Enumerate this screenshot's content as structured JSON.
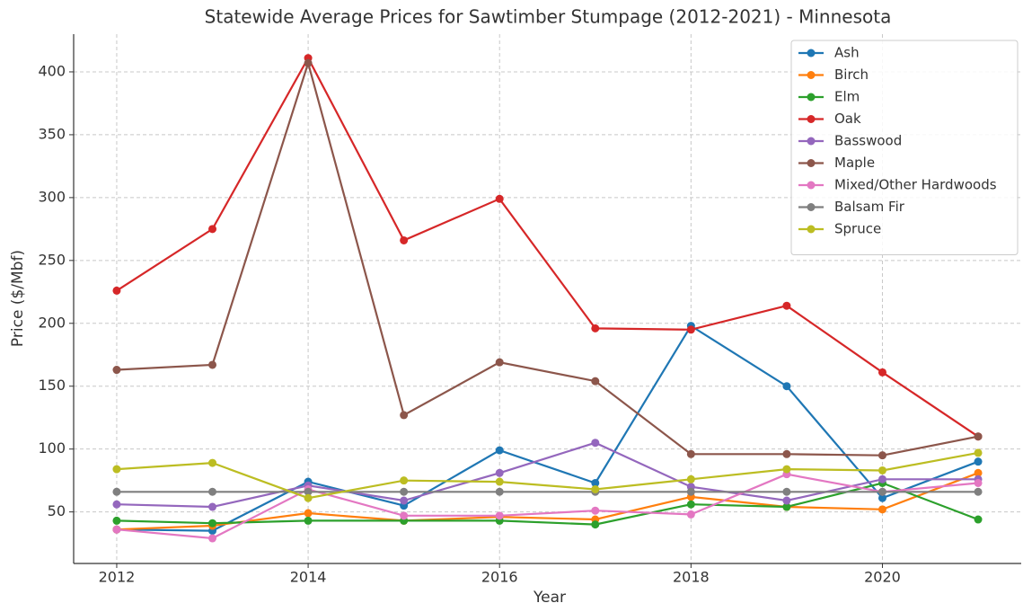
{
  "chart_data": {
    "type": "line",
    "title": "Statewide Average Prices for Sawtimber Stumpage (2012-2021) - Minnesota",
    "xlabel": "Year",
    "ylabel": "Price ($/Mbf)",
    "x": [
      2012,
      2013,
      2014,
      2015,
      2016,
      2017,
      2018,
      2019,
      2020,
      2021
    ],
    "series": [
      {
        "name": "Ash",
        "color": "#1f77b4",
        "values": [
          36,
          35,
          74,
          55,
          99,
          73,
          198,
          150,
          61,
          90
        ]
      },
      {
        "name": "Birch",
        "color": "#ff7f0e",
        "values": [
          36,
          39,
          49,
          43,
          46,
          44,
          62,
          54,
          52,
          81
        ]
      },
      {
        "name": "Elm",
        "color": "#2ca02c",
        "values": [
          43,
          41,
          43,
          43,
          43,
          40,
          56,
          54,
          73,
          44
        ]
      },
      {
        "name": "Oak",
        "color": "#d62728",
        "values": [
          226,
          275,
          411,
          266,
          299,
          196,
          195,
          214,
          161,
          110
        ]
      },
      {
        "name": "Basswood",
        "color": "#9467bd",
        "values": [
          56,
          54,
          71,
          59,
          81,
          105,
          70,
          59,
          76,
          76
        ]
      },
      {
        "name": "Maple",
        "color": "#8c564b",
        "values": [
          163,
          167,
          407,
          127,
          169,
          154,
          96,
          96,
          95,
          110
        ]
      },
      {
        "name": "Mixed/Other Hardwoods",
        "color": "#e377c2",
        "values": [
          36,
          29,
          68,
          47,
          47,
          51,
          48,
          80,
          66,
          73
        ]
      },
      {
        "name": "Balsam Fir",
        "color": "#7f7f7f",
        "values": [
          66,
          66,
          66,
          66,
          66,
          66,
          66,
          66,
          66,
          66
        ]
      },
      {
        "name": "Spruce",
        "color": "#bcbd22",
        "values": [
          84,
          89,
          61,
          75,
          74,
          68,
          76,
          84,
          83,
          97
        ]
      }
    ],
    "xlim": [
      2011.55,
      2021.45
    ],
    "ylim": [
      9,
      430
    ],
    "xticks": [
      2012,
      2014,
      2016,
      2018,
      2020
    ],
    "yticks": [
      50,
      100,
      150,
      200,
      250,
      300,
      350,
      400
    ],
    "grid": true,
    "legend": "upper right"
  }
}
